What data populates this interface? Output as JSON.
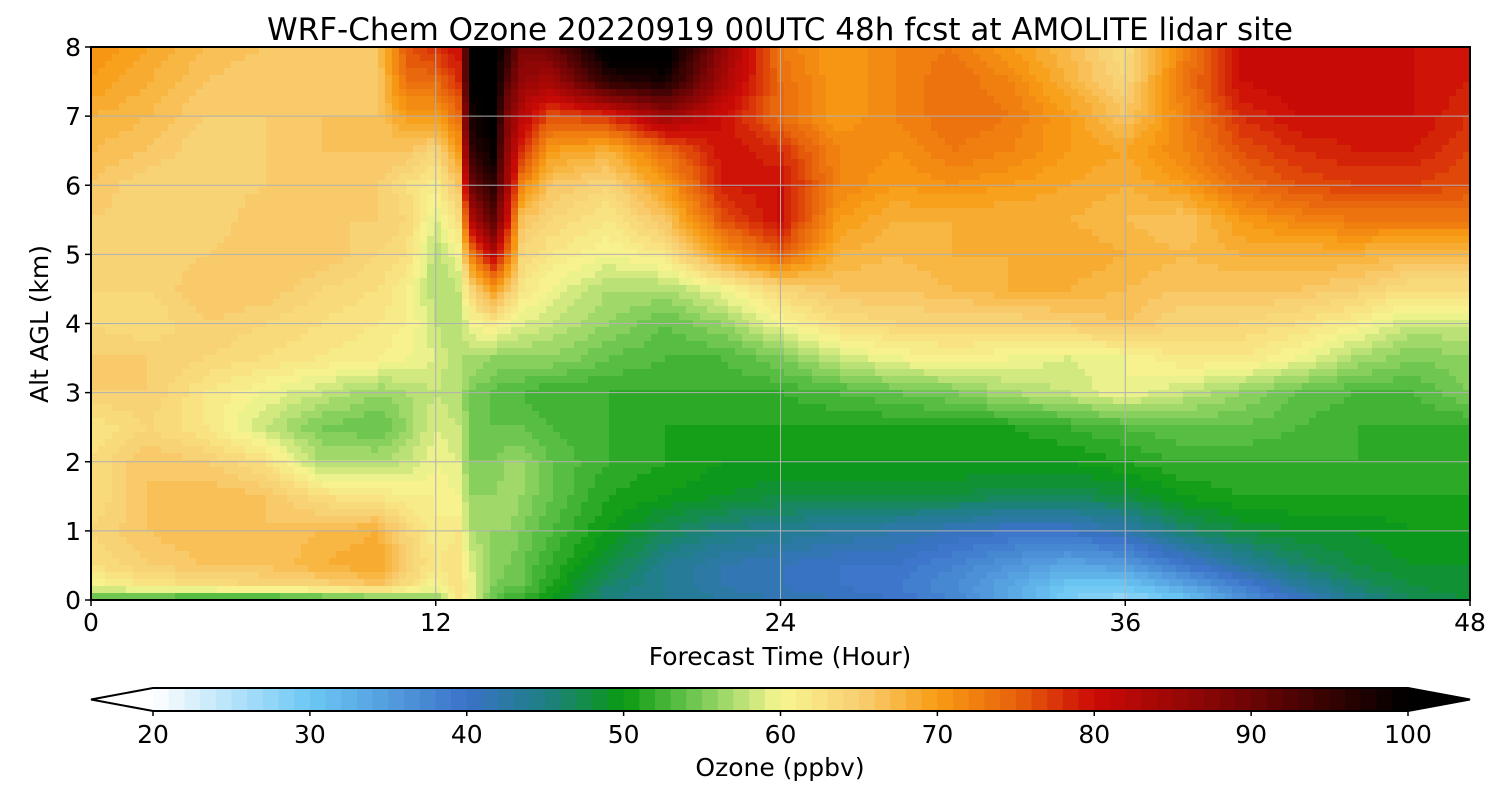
{
  "chart_data": {
    "type": "heatmap",
    "title": "WRF-Chem Ozone  20220919 00UTC 48h fcst at AMOLITE lidar site",
    "xlabel": "Forecast Time (Hour)",
    "ylabel": "Alt AGL (km)",
    "xlim": [
      0,
      48
    ],
    "ylim": [
      0,
      8
    ],
    "x_ticks": [
      "0",
      "12",
      "24",
      "36",
      "48"
    ],
    "y_ticks": [
      "0",
      "1",
      "2",
      "3",
      "4",
      "5",
      "6",
      "7",
      "8"
    ],
    "grid": true,
    "x_hours": [
      0,
      2,
      4,
      6,
      8,
      10,
      11,
      12,
      12.8,
      13.2,
      14,
      14.5,
      15,
      16,
      18,
      20,
      22,
      24,
      26,
      28,
      30,
      32,
      34,
      36,
      38,
      40,
      42,
      44,
      46,
      48
    ],
    "z_km": [
      0,
      0.2,
      0.5,
      1,
      1.5,
      2,
      2.5,
      3,
      3.5,
      4,
      4.5,
      5,
      5.5,
      6,
      6.5,
      7,
      7.5,
      8
    ],
    "ozone_ppbv_rows_by_altitude": [
      [
        52,
        52,
        50,
        50,
        52,
        53,
        54,
        55,
        62,
        60,
        54,
        52,
        52,
        50,
        45,
        44,
        43,
        42,
        41,
        40,
        38,
        34,
        29,
        27,
        30,
        36,
        40,
        44,
        47,
        48
      ],
      [
        60,
        62,
        63,
        64,
        64,
        66,
        63,
        60,
        63,
        60,
        55,
        54,
        54,
        51,
        46,
        44,
        42,
        41,
        40,
        39,
        37,
        34,
        30,
        30,
        34,
        38,
        43,
        46,
        48,
        49
      ],
      [
        63,
        65,
        66,
        66,
        68,
        69,
        65,
        62,
        63,
        59,
        56,
        55,
        54,
        52,
        48,
        44,
        42,
        41,
        40,
        40,
        38,
        36,
        34,
        35,
        39,
        43,
        46,
        48,
        49,
        49
      ],
      [
        64,
        66,
        67,
        66,
        67,
        68,
        64,
        61,
        62,
        57,
        56,
        56,
        55,
        53,
        50,
        47,
        45,
        44,
        43,
        42,
        41,
        40,
        40,
        42,
        46,
        48,
        49,
        49,
        50,
        50
      ],
      [
        63,
        66,
        67,
        66,
        63,
        62,
        61,
        61,
        60,
        56,
        56,
        57,
        56,
        54,
        51,
        50,
        49,
        48,
        48,
        48,
        48,
        47,
        47,
        48,
        50,
        51,
        51,
        51,
        51,
        51
      ],
      [
        63,
        66,
        65,
        63,
        57,
        57,
        58,
        60,
        59,
        55,
        55,
        56,
        56,
        54,
        52,
        51,
        50,
        50,
        50,
        50,
        50,
        50,
        50,
        51,
        52,
        52,
        52,
        52,
        51,
        51
      ],
      [
        62,
        64,
        62,
        58,
        55,
        54,
        56,
        59,
        58,
        55,
        54,
        54,
        54,
        53,
        52,
        51,
        51,
        51,
        51,
        51,
        51,
        51,
        52,
        53,
        54,
        54,
        53,
        52,
        52,
        52
      ],
      [
        65,
        65,
        62,
        60,
        58,
        56,
        57,
        58,
        57,
        55,
        54,
        53,
        53,
        52,
        52,
        52,
        52,
        52,
        53,
        54,
        55,
        57,
        58,
        60,
        58,
        56,
        54,
        53,
        53,
        55
      ],
      [
        65,
        65,
        64,
        63,
        62,
        61,
        60,
        59,
        57,
        57,
        56,
        56,
        56,
        56,
        54,
        53,
        53,
        55,
        58,
        60,
        61,
        60,
        59,
        60,
        62,
        62,
        60,
        57,
        55,
        56
      ],
      [
        64,
        63,
        65,
        64,
        63,
        62,
        61,
        58,
        57,
        60,
        62,
        60,
        59,
        58,
        56,
        54,
        56,
        60,
        63,
        64,
        64,
        64,
        65,
        66,
        64,
        64,
        63,
        61,
        58,
        58
      ],
      [
        64,
        64,
        66,
        66,
        64,
        63,
        61,
        57,
        58,
        64,
        70,
        66,
        62,
        60,
        57,
        57,
        60,
        64,
        66,
        66,
        67,
        68,
        68,
        67,
        66,
        66,
        66,
        65,
        63,
        63
      ],
      [
        65,
        64,
        65,
        66,
        66,
        64,
        63,
        57,
        60,
        72,
        82,
        74,
        64,
        62,
        60,
        62,
        70,
        75,
        68,
        67,
        68,
        68,
        69,
        68,
        67,
        68,
        68,
        68,
        67,
        67
      ],
      [
        65,
        64,
        64,
        66,
        65,
        65,
        64,
        59,
        63,
        82,
        92,
        80,
        66,
        64,
        62,
        66,
        76,
        80,
        70,
        68,
        68,
        68,
        68,
        67,
        66,
        70,
        72,
        73,
        73,
        73
      ],
      [
        66,
        64,
        64,
        65,
        66,
        65,
        63,
        61,
        66,
        90,
        96,
        84,
        72,
        66,
        64,
        70,
        79,
        80,
        72,
        70,
        71,
        70,
        69,
        68,
        70,
        74,
        76,
        77,
        77,
        76
      ],
      [
        67,
        66,
        64,
        65,
        66,
        66,
        66,
        64,
        70,
        95,
        100,
        86,
        78,
        70,
        68,
        74,
        80,
        78,
        72,
        71,
        73,
        72,
        70,
        69,
        72,
        76,
        78,
        79,
        79,
        77
      ],
      [
        68,
        67,
        65,
        65,
        66,
        66,
        70,
        70,
        74,
        98,
        101,
        88,
        82,
        76,
        78,
        85,
        80,
        74,
        70,
        72,
        74,
        73,
        70,
        66,
        72,
        78,
        80,
        80,
        80,
        78
      ],
      [
        70,
        68,
        66,
        65,
        65,
        66,
        74,
        74,
        78,
        100,
        102,
        92,
        86,
        84,
        96,
        98,
        84,
        74,
        70,
        72,
        74,
        72,
        68,
        64,
        73,
        80,
        81,
        80,
        80,
        79
      ],
      [
        71,
        69,
        67,
        66,
        65,
        66,
        76,
        78,
        80,
        100,
        102,
        96,
        88,
        90,
        102,
        102,
        86,
        73,
        70,
        72,
        73,
        70,
        67,
        63,
        72,
        80,
        81,
        80,
        80,
        79
      ]
    ],
    "colorbar": {
      "label": "Ozone  (ppbv)",
      "min": 20,
      "max": 100,
      "extend": "both",
      "ticks": [
        "20",
        "30",
        "40",
        "50",
        "60",
        "70",
        "80",
        "90",
        "100"
      ],
      "stops": [
        {
          "v": 20,
          "c": "#ffffff"
        },
        {
          "v": 30,
          "c": "#6cc8f4"
        },
        {
          "v": 40,
          "c": "#3a72c8"
        },
        {
          "v": 45,
          "c": "#1e7f84"
        },
        {
          "v": 50,
          "c": "#0a9a12"
        },
        {
          "v": 55,
          "c": "#7acc58"
        },
        {
          "v": 60,
          "c": "#f7f591"
        },
        {
          "v": 65,
          "c": "#f8cf72"
        },
        {
          "v": 70,
          "c": "#f79c14"
        },
        {
          "v": 75,
          "c": "#e8620c"
        },
        {
          "v": 80,
          "c": "#cc0a06"
        },
        {
          "v": 90,
          "c": "#6c0404"
        },
        {
          "v": 100,
          "c": "#000000"
        }
      ]
    }
  }
}
